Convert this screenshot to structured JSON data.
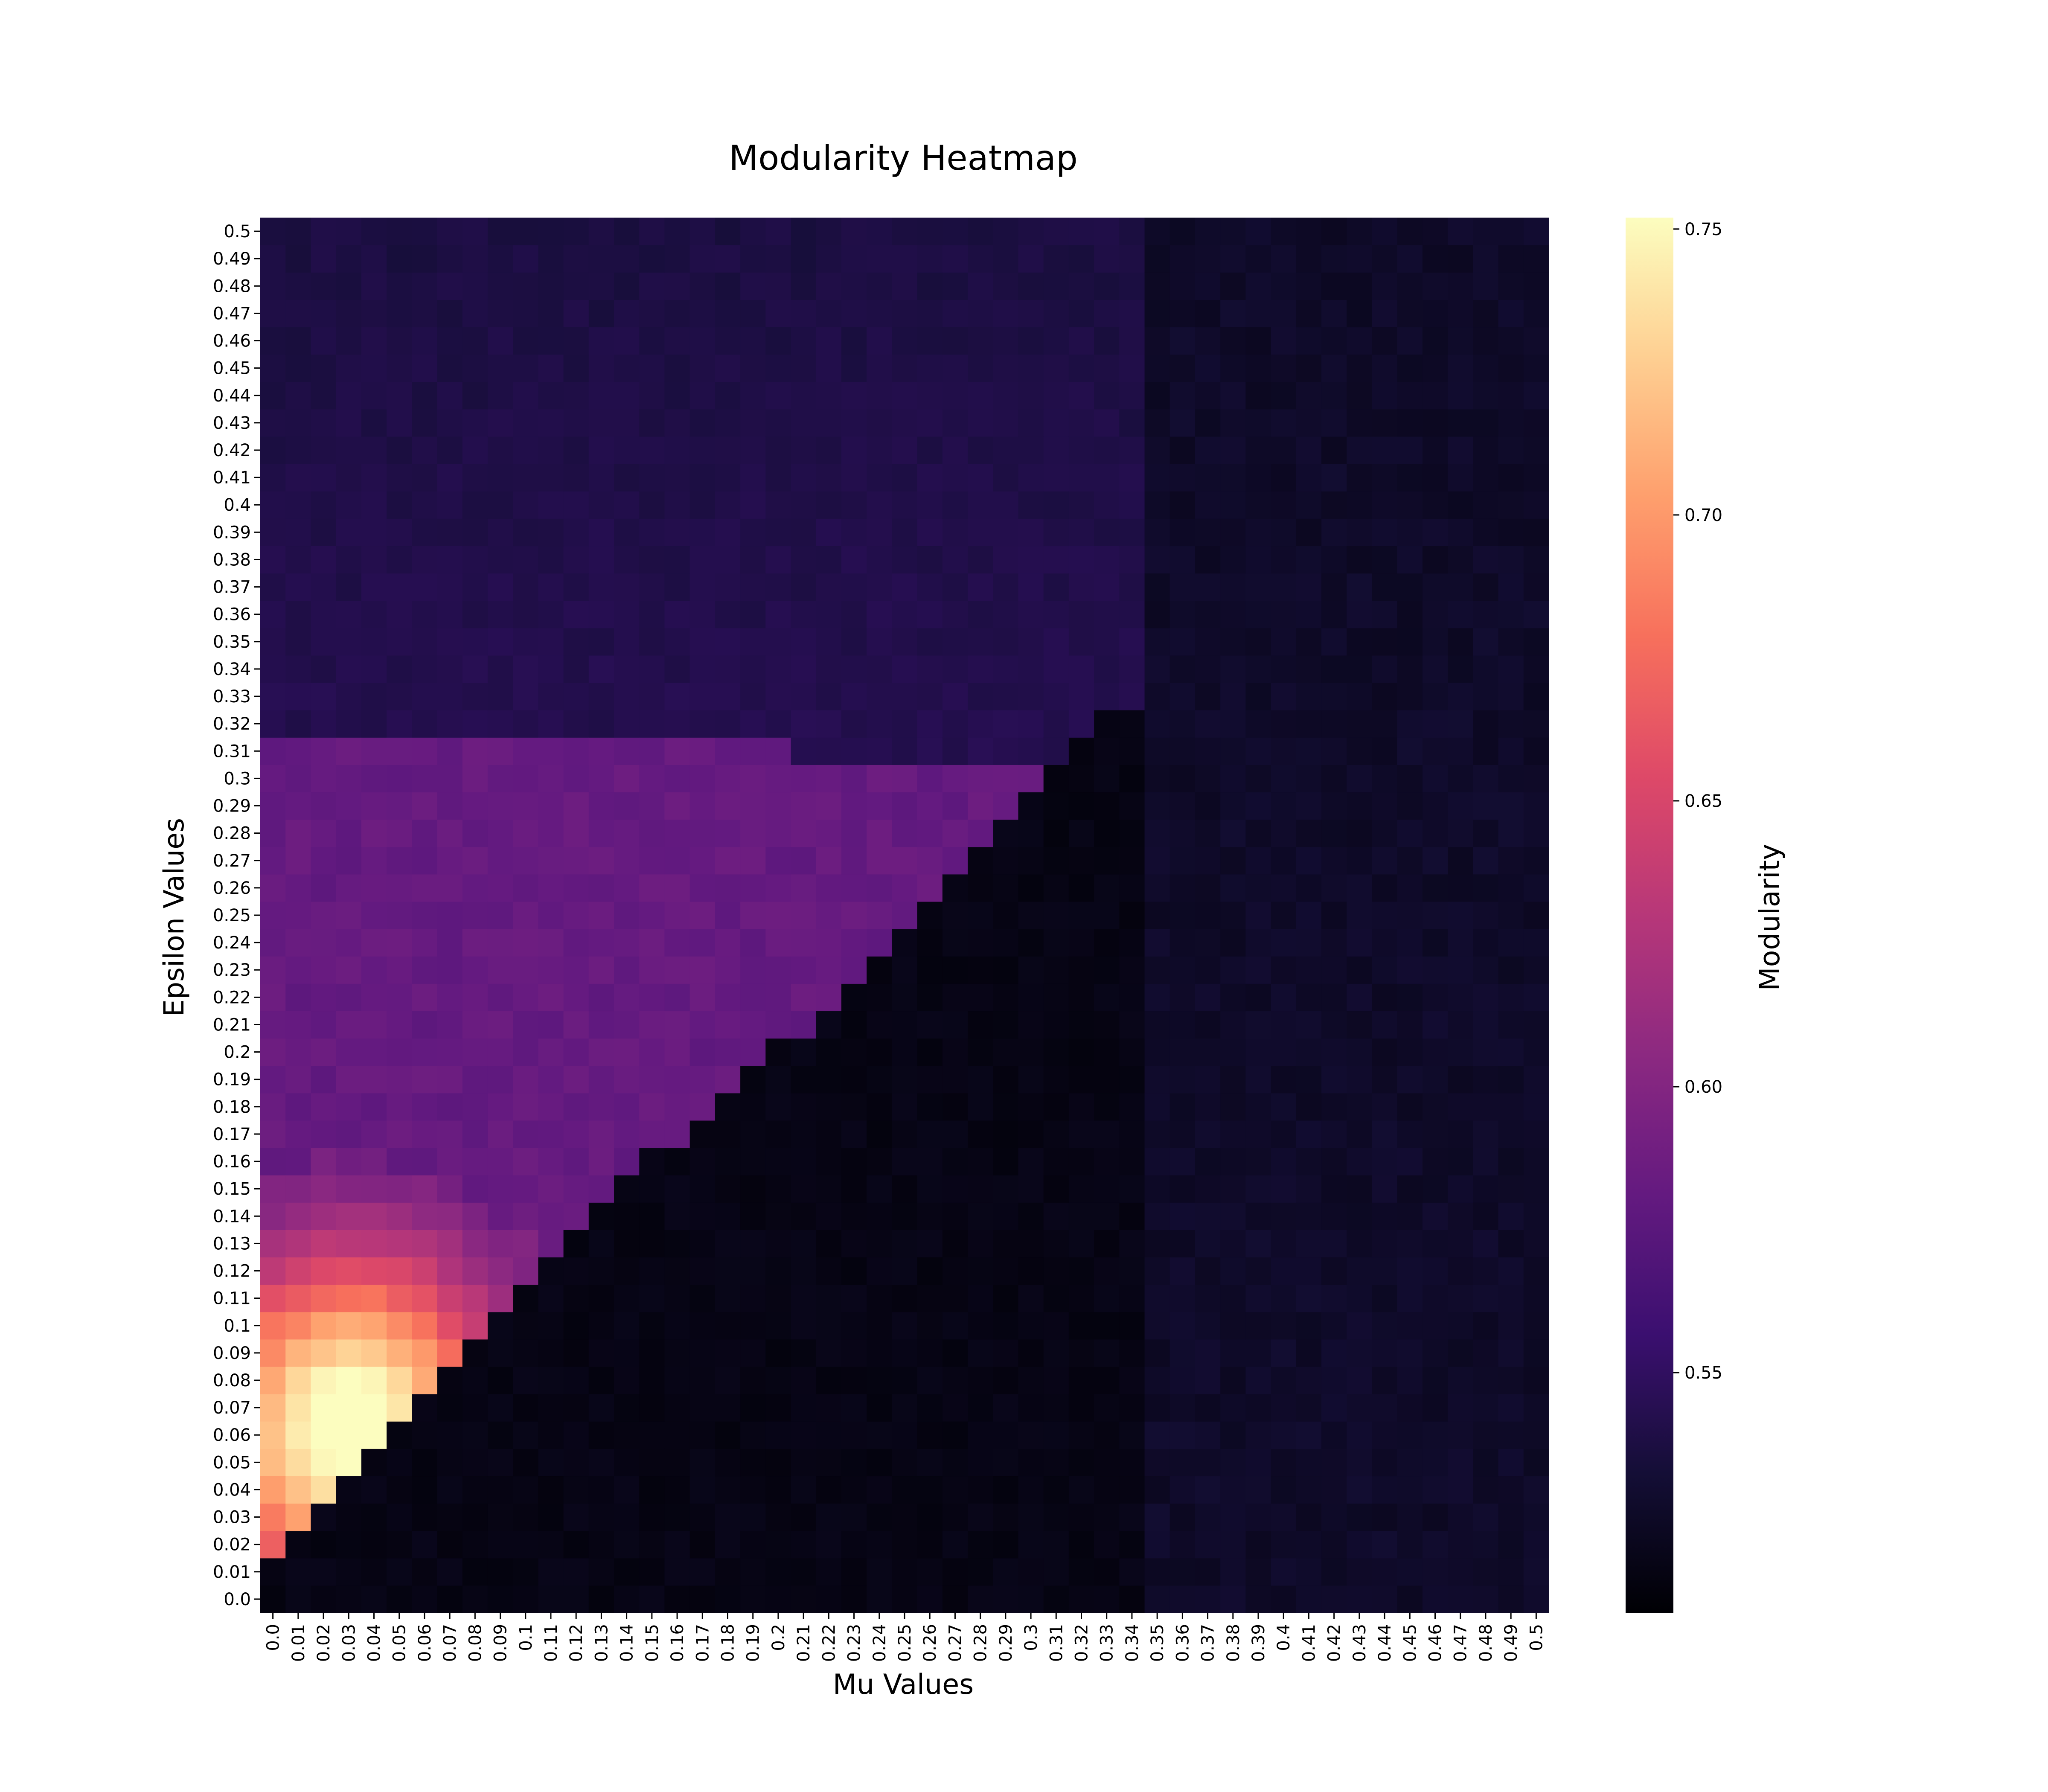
{
  "chart_data": {
    "type": "heatmap",
    "title": "Modularity Heatmap",
    "xlabel": "Mu Values",
    "ylabel": "Epsilon Values",
    "colorbar_label": "Modularity",
    "colormap": "magma",
    "x_tick_labels": [
      "0.0",
      "0.01",
      "0.02",
      "0.03",
      "0.04",
      "0.05",
      "0.06",
      "0.07",
      "0.08",
      "0.09",
      "0.1",
      "0.11",
      "0.12",
      "0.13",
      "0.14",
      "0.15",
      "0.16",
      "0.17",
      "0.18",
      "0.19",
      "0.2",
      "0.21",
      "0.22",
      "0.23",
      "0.24",
      "0.25",
      "0.26",
      "0.27",
      "0.28",
      "0.29",
      "0.3",
      "0.31",
      "0.32",
      "0.33",
      "0.34",
      "0.35",
      "0.36",
      "0.37",
      "0.38",
      "0.39",
      "0.4",
      "0.41",
      "0.42",
      "0.43",
      "0.44",
      "0.45",
      "0.46",
      "0.47",
      "0.48",
      "0.49",
      "0.5"
    ],
    "y_tick_labels": [
      "0.0",
      "0.01",
      "0.02",
      "0.03",
      "0.04",
      "0.05",
      "0.06",
      "0.07",
      "0.08",
      "0.09",
      "0.1",
      "0.11",
      "0.12",
      "0.13",
      "0.14",
      "0.15",
      "0.16",
      "0.17",
      "0.18",
      "0.19",
      "0.2",
      "0.21",
      "0.22",
      "0.23",
      "0.24",
      "0.25",
      "0.26",
      "0.27",
      "0.28",
      "0.29",
      "0.3",
      "0.31",
      "0.32",
      "0.33",
      "0.34",
      "0.35",
      "0.36",
      "0.37",
      "0.38",
      "0.39",
      "0.4",
      "0.41",
      "0.42",
      "0.43",
      "0.44",
      "0.45",
      "0.46",
      "0.47",
      "0.48",
      "0.49",
      "0.5"
    ],
    "colorbar_ticks": [
      "0.55",
      "0.60",
      "0.65",
      "0.70",
      "0.75"
    ],
    "value_range": [
      0.508,
      0.752
    ],
    "value_pattern": {
      "background": 0.52,
      "upper_region": 0.532,
      "purple_band": 0.582,
      "hot_corner_peak": 0.752
    }
  }
}
